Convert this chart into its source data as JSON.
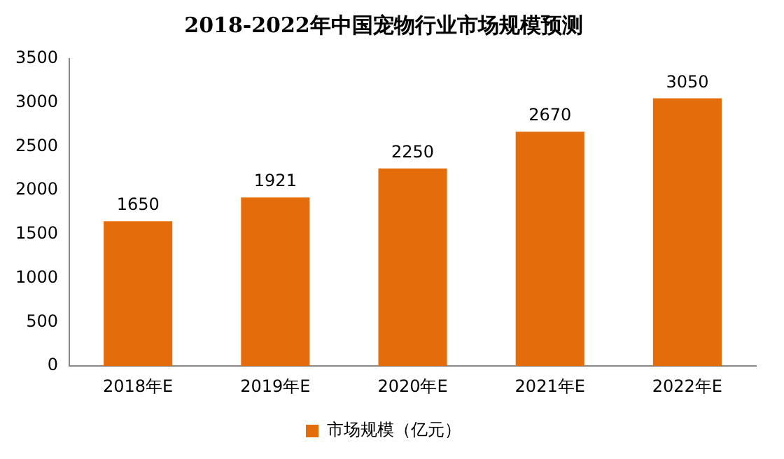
{
  "chart_data": {
    "type": "bar",
    "title": "2018-2022年中国宠物行业市场规模预测",
    "categories": [
      "2018年E",
      "2019年E",
      "2020年E",
      "2021年E",
      "2022年E"
    ],
    "series": [
      {
        "name": "市场规模（亿元）",
        "color": "#e46c0a",
        "values": [
          1650,
          1921,
          2250,
          2670,
          3050
        ]
      }
    ],
    "ylim": [
      0,
      3500
    ],
    "yticks": [
      0,
      500,
      1000,
      1500,
      2000,
      2500,
      3000,
      3500
    ],
    "grid": false,
    "legend": "bottom",
    "data_labels": true
  }
}
